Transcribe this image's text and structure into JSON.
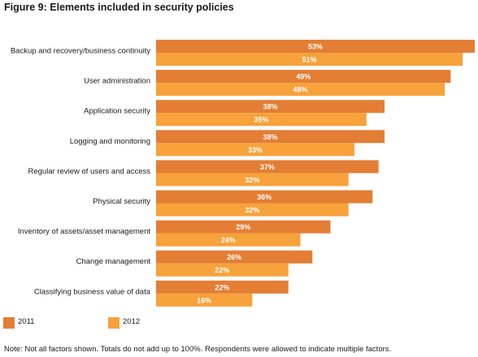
{
  "title": "Figure 9: Elements included in security policies",
  "note": "Note: Not all factors shown. Totals do not add up to 100%. Respondents were allowed to indicate multiple factors.",
  "colors": {
    "series_2011": "#E37E34",
    "series_2012": "#F7A23A",
    "label_text": "#ffffff",
    "category_text": "#1a1a1a"
  },
  "chart_data": {
    "type": "bar",
    "orientation": "horizontal",
    "title": "Figure 9: Elements included in security policies",
    "categories": [
      "Backup and recovery/business continuity",
      "User administration",
      "Application security",
      "Logging and monitoring",
      "Regular review of users and access",
      "Physical security",
      "Inventory of assets/asset management",
      "Change management",
      "Classifying business value of data"
    ],
    "series": [
      {
        "name": "2011",
        "values": [
          53,
          49,
          38,
          38,
          37,
          36,
          29,
          26,
          22
        ]
      },
      {
        "name": "2012",
        "values": [
          51,
          48,
          35,
          33,
          32,
          32,
          24,
          22,
          16
        ]
      }
    ],
    "value_suffix": "%",
    "xlim": [
      0,
      53
    ],
    "grid": false,
    "legend_position": "bottom-left",
    "data_labels": true
  }
}
